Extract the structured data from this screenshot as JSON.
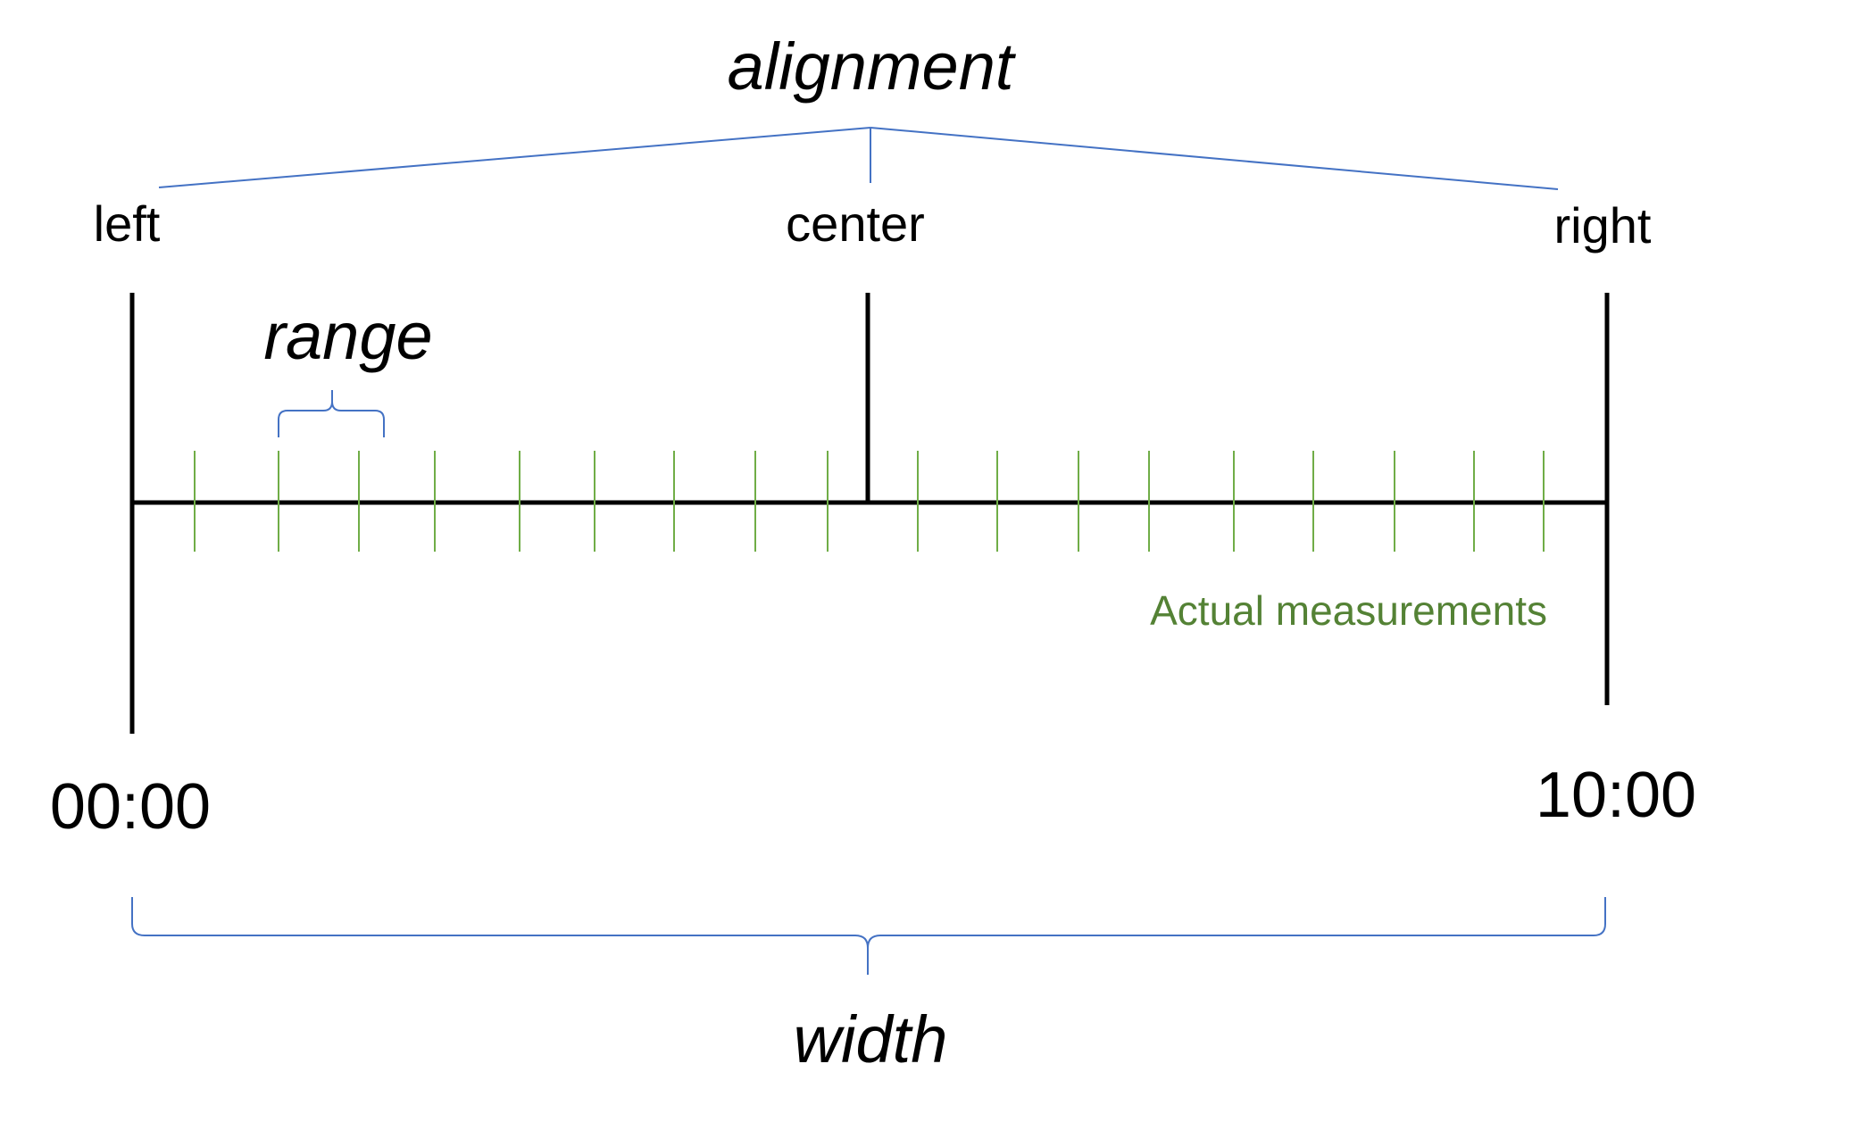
{
  "labels": {
    "alignment": "alignment",
    "left": "left",
    "center": "center",
    "right": "right",
    "range": "range",
    "start_time": "00:00",
    "end_time": "10:00",
    "width": "width",
    "measurements": "Actual measurements"
  },
  "colors": {
    "axis": "#000000",
    "brace": "#4472C4",
    "measurement": "#70AD47"
  },
  "measurement_count": 18
}
